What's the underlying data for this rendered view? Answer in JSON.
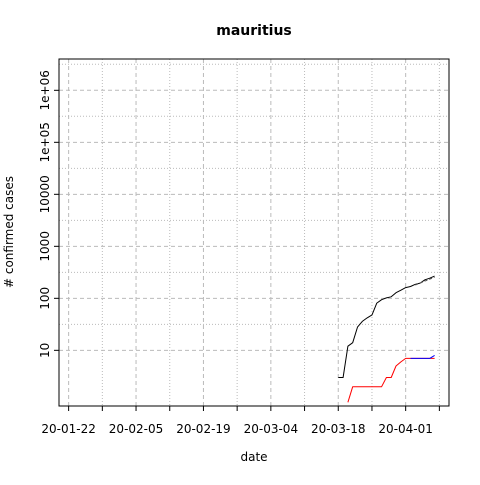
{
  "chart_data": {
    "type": "line",
    "title": "mauritius",
    "xlabel": "date",
    "ylabel": "# confirmed cases",
    "yscale": "log",
    "grid": true,
    "x_tick_labels": [
      "20-01-22",
      "20-02-05",
      "20-02-19",
      "20-03-04",
      "20-03-18",
      "20-04-01"
    ],
    "y_tick_labels": [
      "10",
      "100",
      "1000",
      "10000",
      "1e+05",
      "1e+06"
    ],
    "x_range": [
      "2020-01-20",
      "2020-04-10"
    ],
    "y_range": [
      0.85,
      4000000
    ],
    "series": [
      {
        "color": "#000000",
        "dash": "none",
        "points": [
          [
            "2020-03-18",
            3
          ],
          [
            "2020-03-19",
            3
          ],
          [
            "2020-03-20",
            12
          ],
          [
            "2020-03-21",
            14
          ],
          [
            "2020-03-22",
            28
          ],
          [
            "2020-03-23",
            36
          ],
          [
            "2020-03-24",
            42
          ],
          [
            "2020-03-25",
            48
          ],
          [
            "2020-03-26",
            81
          ],
          [
            "2020-03-27",
            94
          ],
          [
            "2020-03-28",
            102
          ],
          [
            "2020-03-29",
            107
          ],
          [
            "2020-03-30",
            128
          ],
          [
            "2020-03-31",
            143
          ],
          [
            "2020-04-01",
            161
          ],
          [
            "2020-04-02",
            169
          ],
          [
            "2020-04-03",
            186
          ],
          [
            "2020-04-04",
            196
          ],
          [
            "2020-04-05",
            227
          ],
          [
            "2020-04-06",
            244
          ],
          [
            "2020-04-07",
            268
          ]
        ]
      },
      {
        "color": "#555555",
        "dash": "3,2",
        "points": [
          [
            "2020-04-03",
            180
          ],
          [
            "2020-04-04",
            196
          ],
          [
            "2020-04-05",
            214
          ],
          [
            "2020-04-06",
            233
          ],
          [
            "2020-04-07",
            255
          ]
        ]
      },
      {
        "color": "#ff0000",
        "dash": "none",
        "points": [
          [
            "2020-03-20",
            1
          ],
          [
            "2020-03-21",
            2
          ],
          [
            "2020-03-22",
            2
          ],
          [
            "2020-03-23",
            2
          ],
          [
            "2020-03-24",
            2
          ],
          [
            "2020-03-25",
            2
          ],
          [
            "2020-03-26",
            2
          ],
          [
            "2020-03-27",
            2
          ],
          [
            "2020-03-28",
            3
          ],
          [
            "2020-03-29",
            3
          ],
          [
            "2020-03-30",
            5
          ],
          [
            "2020-03-31",
            6
          ],
          [
            "2020-04-01",
            7
          ],
          [
            "2020-04-02",
            7
          ],
          [
            "2020-04-03",
            7
          ],
          [
            "2020-04-04",
            7
          ],
          [
            "2020-04-05",
            7
          ],
          [
            "2020-04-06",
            7
          ],
          [
            "2020-04-07",
            7
          ]
        ]
      },
      {
        "color": "#0000ff",
        "dash": "none",
        "points": [
          [
            "2020-04-02",
            7
          ],
          [
            "2020-04-03",
            7
          ],
          [
            "2020-04-04",
            7
          ],
          [
            "2020-04-05",
            7
          ],
          [
            "2020-04-06",
            7
          ],
          [
            "2020-04-07",
            8
          ]
        ]
      }
    ]
  }
}
